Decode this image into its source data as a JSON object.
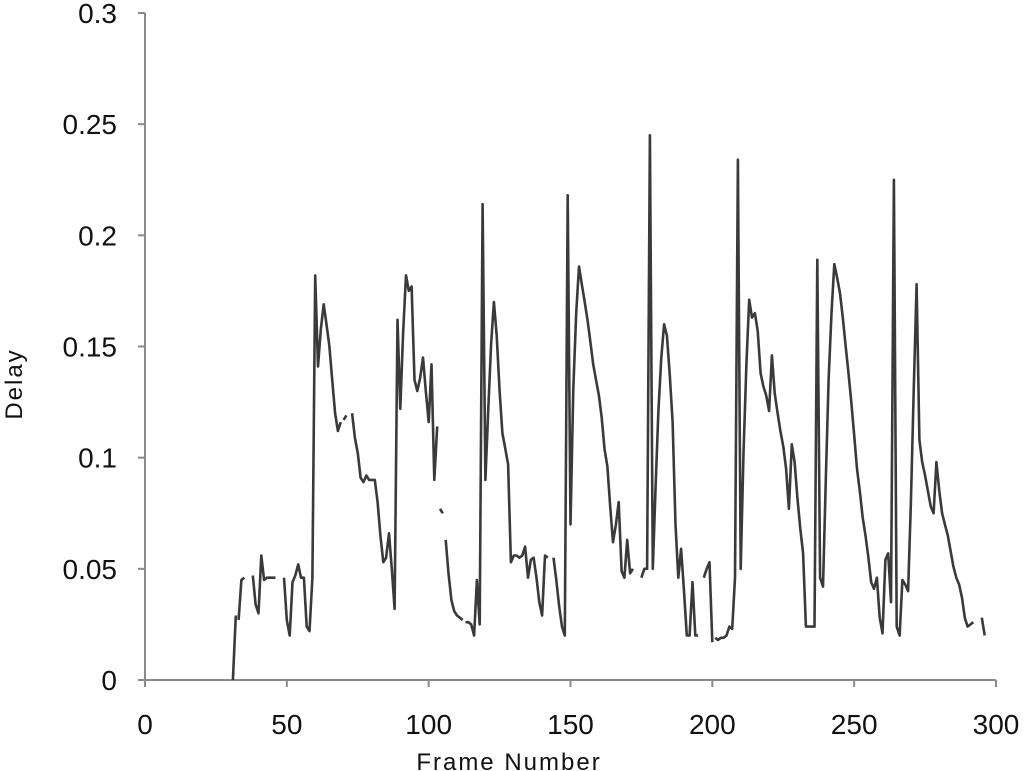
{
  "chart_data": {
    "type": "line",
    "title": "",
    "xlabel": "Frame Number",
    "ylabel": "Delay",
    "xlim": [
      0,
      300
    ],
    "ylim": [
      0,
      0.3
    ],
    "x_ticks": [
      0,
      50,
      100,
      150,
      200,
      250,
      300
    ],
    "x_tick_labels": [
      "0",
      "50",
      "100",
      "150",
      "200",
      "250",
      "300"
    ],
    "y_ticks": [
      0,
      0.05,
      0.1,
      0.15,
      0.2,
      0.25,
      0.3
    ],
    "y_tick_labels": [
      "0",
      "0.05",
      "0.1",
      "0.15",
      "0.2",
      "0.25",
      "0.3"
    ],
    "grid": false,
    "line_color": "#3a3a3a",
    "segments": [
      {
        "x": [
          31,
          32
        ],
        "y": [
          0,
          0.029
        ]
      },
      {
        "x": [
          33,
          34,
          35
        ],
        "y": [
          0.027,
          0.045,
          0.046
        ]
      },
      {
        "x": [
          38,
          39,
          40,
          41,
          42,
          43,
          44,
          45,
          46
        ],
        "y": [
          0.047,
          0.034,
          0.03,
          0.056,
          0.045,
          0.046,
          0.046,
          0.046,
          0.046
        ]
      },
      {
        "x": [
          49,
          50,
          51,
          52,
          53,
          54,
          55,
          56,
          57,
          58,
          59,
          60,
          61,
          62,
          63,
          64,
          65,
          66,
          67,
          68,
          69
        ],
        "y": [
          0.046,
          0.027,
          0.02,
          0.044,
          0.047,
          0.052,
          0.046,
          0.046,
          0.024,
          0.022,
          0.046,
          0.182,
          0.141,
          0.158,
          0.169,
          0.16,
          0.15,
          0.135,
          0.12,
          0.112,
          0.116
        ]
      },
      {
        "x": [
          70,
          71
        ],
        "y": [
          0.117,
          0.119
        ]
      },
      {
        "x": [
          73,
          74,
          75,
          76,
          77,
          78,
          79,
          80,
          81,
          82,
          83,
          84,
          85,
          86,
          87,
          88,
          89,
          90,
          91,
          92,
          93,
          94,
          95,
          96,
          97,
          98,
          99,
          100,
          101,
          102,
          103
        ],
        "y": [
          0.12,
          0.109,
          0.102,
          0.091,
          0.089,
          0.092,
          0.09,
          0.09,
          0.09,
          0.08,
          0.065,
          0.053,
          0.055,
          0.066,
          0.05,
          0.032,
          0.162,
          0.122,
          0.156,
          0.182,
          0.175,
          0.177,
          0.135,
          0.13,
          0.136,
          0.145,
          0.13,
          0.116,
          0.142,
          0.09,
          0.114
        ]
      },
      {
        "x": [
          104,
          105
        ],
        "y": [
          0.077,
          0.075
        ]
      },
      {
        "x": [
          106,
          107,
          108,
          109,
          110,
          111,
          112
        ],
        "y": [
          0.063,
          0.048,
          0.036,
          0.031,
          0.029,
          0.028,
          0.027
        ]
      },
      {
        "x": [
          113,
          114,
          115,
          116,
          117,
          118,
          119,
          120,
          121,
          122,
          123,
          124,
          125,
          126,
          127,
          128,
          129,
          130,
          131,
          132,
          133,
          134,
          135,
          136,
          137,
          138,
          139,
          140,
          141,
          142
        ],
        "y": [
          0.026,
          0.026,
          0.025,
          0.02,
          0.045,
          0.025,
          0.214,
          0.09,
          0.121,
          0.151,
          0.17,
          0.155,
          0.13,
          0.111,
          0.104,
          0.097,
          0.053,
          0.056,
          0.056,
          0.055,
          0.056,
          0.06,
          0.046,
          0.054,
          0.055,
          0.046,
          0.035,
          0.029,
          0.056,
          0.055
        ]
      },
      {
        "x": [
          144,
          145,
          146,
          147,
          148,
          149,
          150,
          151,
          152,
          153,
          154,
          155,
          156,
          157,
          158,
          159,
          160,
          161,
          162,
          163,
          164,
          165,
          166,
          167,
          168,
          169,
          170,
          171,
          172
        ],
        "y": [
          0.055,
          0.045,
          0.033,
          0.024,
          0.02,
          0.218,
          0.07,
          0.131,
          0.165,
          0.186,
          0.178,
          0.17,
          0.162,
          0.152,
          0.142,
          0.135,
          0.128,
          0.118,
          0.104,
          0.096,
          0.078,
          0.062,
          0.07,
          0.08,
          0.049,
          0.046,
          0.063,
          0.048,
          0.05
        ]
      },
      {
        "x": [
          175,
          176,
          177,
          178,
          179,
          180,
          181,
          182,
          183,
          184,
          185,
          186,
          187,
          188,
          189,
          190,
          191,
          192,
          193,
          194,
          195
        ],
        "y": [
          0.046,
          0.05,
          0.05,
          0.245,
          0.05,
          0.087,
          0.121,
          0.145,
          0.16,
          0.155,
          0.137,
          0.116,
          0.07,
          0.046,
          0.059,
          0.04,
          0.02,
          0.02,
          0.044,
          0.02,
          0.02
        ]
      },
      {
        "x": [
          197,
          198,
          199,
          200
        ],
        "y": [
          0.046,
          0.05,
          0.053,
          0.017
        ]
      },
      {
        "x": [
          201,
          202,
          203,
          204,
          205,
          206,
          207,
          208,
          209,
          210,
          211,
          212,
          213,
          214,
          215,
          216,
          217,
          218,
          219,
          220,
          221,
          222,
          223,
          224,
          225,
          226,
          227,
          228,
          229,
          230,
          231,
          232,
          233,
          234,
          235,
          236,
          237,
          238,
          239,
          240,
          241,
          242,
          243,
          244,
          245,
          246,
          247,
          248,
          249,
          250,
          251,
          252,
          253,
          254,
          255,
          256,
          257,
          258,
          259,
          260,
          261,
          262,
          263,
          264,
          265,
          266,
          267,
          268,
          269,
          270,
          271,
          272,
          273,
          274,
          275,
          276,
          277,
          278,
          279,
          280,
          281,
          282,
          283,
          284,
          285,
          286,
          287,
          288,
          289,
          290,
          291,
          292
        ],
        "y": [
          0.019,
          0.018,
          0.019,
          0.019,
          0.02,
          0.024,
          0.023,
          0.046,
          0.234,
          0.05,
          0.102,
          0.142,
          0.171,
          0.163,
          0.165,
          0.157,
          0.138,
          0.132,
          0.128,
          0.121,
          0.146,
          0.129,
          0.12,
          0.112,
          0.105,
          0.095,
          0.077,
          0.106,
          0.098,
          0.082,
          0.068,
          0.057,
          0.024,
          0.024,
          0.024,
          0.024,
          0.189,
          0.046,
          0.042,
          0.09,
          0.135,
          0.165,
          0.187,
          0.181,
          0.174,
          0.163,
          0.15,
          0.138,
          0.125,
          0.11,
          0.095,
          0.085,
          0.073,
          0.065,
          0.055,
          0.044,
          0.041,
          0.046,
          0.028,
          0.021,
          0.054,
          0.057,
          0.035,
          0.225,
          0.024,
          0.02,
          0.045,
          0.043,
          0.04,
          0.08,
          0.13,
          0.178,
          0.108,
          0.098,
          0.092,
          0.085,
          0.078,
          0.075,
          0.098,
          0.085,
          0.075,
          0.07,
          0.065,
          0.058,
          0.051,
          0.046,
          0.043,
          0.037,
          0.028,
          0.024,
          0.025,
          0.026
        ]
      },
      {
        "x": [
          295,
          296
        ],
        "y": [
          0.028,
          0.02
        ]
      }
    ]
  }
}
